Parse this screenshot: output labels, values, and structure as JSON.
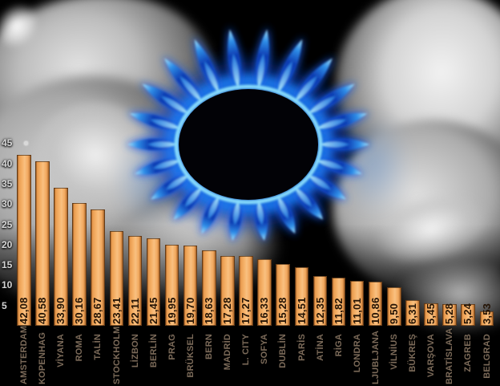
{
  "chart_data": {
    "type": "bar",
    "title": "",
    "categories": [
      "AMSTERDAM",
      "KOPENHAG",
      "VİYANA",
      "ROMA",
      "TALİN",
      "STOCKHOLM",
      "LİZBON",
      "BERLİN",
      "PRAG",
      "BRÜKSEL",
      "BERN",
      "MADRİD",
      "L. CITY",
      "SOFYA",
      "DUBLİN",
      "PARİS",
      "ATİNA",
      "RİGA",
      "LONDRA",
      "LJUBLJANA",
      "VİLNİUS",
      "BÜKREŞ",
      "VARŞOVA",
      "BRATİSLAVA",
      "ZAGREB",
      "BELGRAD"
    ],
    "values": [
      42.08,
      40.58,
      33.9,
      30.16,
      28.67,
      23.41,
      22.11,
      21.45,
      19.95,
      19.7,
      18.63,
      17.28,
      17.27,
      16.33,
      15.28,
      14.51,
      12.35,
      11.82,
      11.01,
      10.86,
      9.5,
      6.31,
      5.45,
      5.28,
      5.24,
      3.53
    ],
    "value_labels": [
      "42,08",
      "40,58",
      "33,90",
      "30,16",
      "28,67",
      "23,41",
      "22,11",
      "21,45",
      "19,95",
      "19,70",
      "18,63",
      "17,28",
      "17,27",
      "16,33",
      "15,28",
      "14,51",
      "12,35",
      "11,82",
      "11,01",
      "10,86",
      "9,50",
      "6,31",
      "5,45",
      "5,28",
      "5,24",
      "3,53"
    ],
    "y_ticks": [
      45,
      40,
      35,
      30,
      25,
      20,
      15,
      10,
      5
    ],
    "ylim": [
      0,
      45
    ],
    "grid": false,
    "legend": false,
    "xlabel": "",
    "ylabel": ""
  },
  "colors": {
    "background": "#000000",
    "bar": "#f2a95f",
    "bar_edge": "#8a5420",
    "value_text": "#241304",
    "city_text": "#7b6a59",
    "axis_text": "#e4e4e4",
    "flame_deep_blue": "#0d3cb2",
    "flame_mid_blue": "#1f7cf2",
    "flame_bright_cyan": "#45c6f7",
    "flame_pale_cyan": "#aee9ff"
  }
}
